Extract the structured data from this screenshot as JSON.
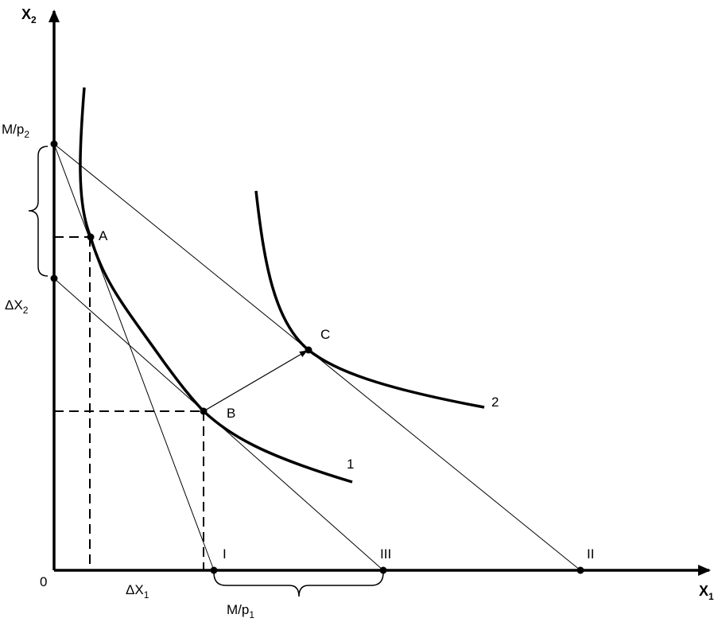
{
  "axes": {
    "x_label": "X",
    "x_label_sub": "1",
    "y_label": "X",
    "y_label_sub": "2",
    "origin_label": "0"
  },
  "intercepts": {
    "y_budget_label": "M/p",
    "y_budget_label_sub": "2",
    "x_budget_label": "M/p",
    "x_budget_label_sub": "1",
    "delta_x2_label": "ΔX",
    "delta_x2_label_sub": "2",
    "delta_x1_label": "ΔX",
    "delta_x1_label_sub": "1"
  },
  "budget_line_labels": {
    "line_i": "I",
    "line_ii": "II",
    "line_iii": "III"
  },
  "points": {
    "a": "A",
    "b": "B",
    "c": "C"
  },
  "indifference_curves": {
    "curve_1": "1",
    "curve_2": "2"
  },
  "colors": {
    "ink": "#000000",
    "background": "#ffffff"
  }
}
